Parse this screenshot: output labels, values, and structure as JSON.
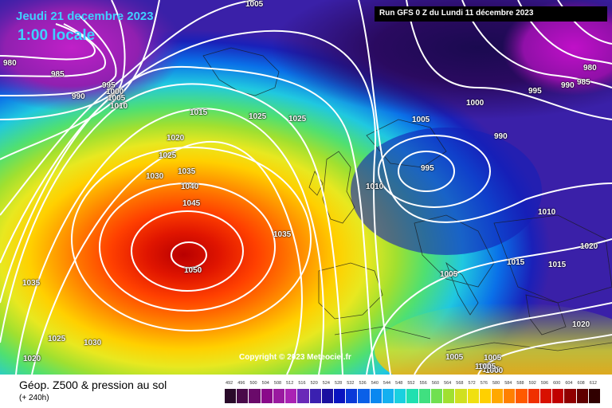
{
  "map": {
    "title_date": "Jeudi 21 decembre 2023",
    "title_time": "1:00 locale",
    "run_info": "Run GFS 0 Z du Lundi 11 décembre 2023",
    "copyright": "Copyright © 2023 Meteociel.fr",
    "isobar_labels": [
      {
        "value": "1005",
        "pos": "top-center"
      },
      {
        "value": "980",
        "pos": "left"
      },
      {
        "value": "985",
        "pos": "left"
      },
      {
        "value": "990",
        "pos": "left"
      },
      {
        "value": "995",
        "pos": "left"
      },
      {
        "value": "1000",
        "pos": "left"
      },
      {
        "value": "1005",
        "pos": "left"
      },
      {
        "value": "1010",
        "pos": "left"
      },
      {
        "value": "1015",
        "pos": "center-north"
      },
      {
        "value": "1025",
        "pos": "center-north"
      },
      {
        "value": "1025",
        "pos": "center-north"
      },
      {
        "value": "1020",
        "pos": "center-west"
      },
      {
        "value": "1025",
        "pos": "center-west"
      },
      {
        "value": "1030",
        "pos": "center-west"
      },
      {
        "value": "1035",
        "pos": "center-west"
      },
      {
        "value": "1040",
        "pos": "center-west"
      },
      {
        "value": "1045",
        "pos": "center-west"
      },
      {
        "value": "1050",
        "pos": "center-west"
      },
      {
        "value": "1035",
        "pos": "center"
      },
      {
        "value": "1035",
        "pos": "left"
      },
      {
        "value": "1025",
        "pos": "bottom-left"
      },
      {
        "value": "1030",
        "pos": "bottom-left"
      },
      {
        "value": "1020",
        "pos": "bottom-left"
      },
      {
        "value": "1010",
        "pos": "center-east"
      },
      {
        "value": "1005",
        "pos": "north-east"
      },
      {
        "value": "995",
        "pos": "east"
      },
      {
        "value": "1000",
        "pos": "north-east"
      },
      {
        "value": "995",
        "pos": "north-east"
      },
      {
        "value": "990",
        "pos": "north-east"
      },
      {
        "value": "990",
        "pos": "east"
      },
      {
        "value": "985",
        "pos": "far-east"
      },
      {
        "value": "980",
        "pos": "far-east"
      },
      {
        "value": "1010",
        "pos": "far-east"
      },
      {
        "value": "1020",
        "pos": "far-east"
      },
      {
        "value": "1015",
        "pos": "far-east"
      },
      {
        "value": "1015",
        "pos": "far-east"
      },
      {
        "value": "1020",
        "pos": "far-east"
      },
      {
        "value": "1005",
        "pos": "south-center"
      },
      {
        "value": "1005",
        "pos": "south"
      },
      {
        "value": "1005",
        "pos": "south"
      },
      {
        "value": "1005",
        "pos": "south"
      },
      {
        "value": "1005",
        "pos": "south"
      },
      {
        "value": "1000",
        "pos": "south"
      },
      {
        "value": "1005",
        "pos": "south"
      }
    ],
    "pressure_center": {
      "value": "1050",
      "type": "high"
    }
  },
  "footer": {
    "product_title": "Géop. Z500 & pression au sol",
    "product_sub": "(+ 240h)",
    "legend": {
      "labels": [
        "492",
        "496",
        "500",
        "504",
        "508",
        "512",
        "516",
        "520",
        "524",
        "528",
        "532",
        "536",
        "540",
        "544",
        "548",
        "552",
        "556",
        "560",
        "564",
        "568",
        "572",
        "576",
        "580",
        "584",
        "588",
        "592",
        "596",
        "600",
        "604",
        "608",
        "612"
      ],
      "colors": [
        "#2a0a2a",
        "#4a0a4a",
        "#6a0a6a",
        "#8a0a8a",
        "#9a1aa0",
        "#aa22b4",
        "#6a2ab8",
        "#3a20b0",
        "#1a10a0",
        "#0a14c0",
        "#0a3ad8",
        "#0a60e8",
        "#0a88f0",
        "#14b0f0",
        "#1ad0e0",
        "#20e0b0",
        "#40e080",
        "#70e050",
        "#a0e030",
        "#d0e020",
        "#f0e010",
        "#ffd000",
        "#ffa800",
        "#ff8000",
        "#ff5a00",
        "#f03000",
        "#d81000",
        "#c00000",
        "#900000",
        "#600000",
        "#300000"
      ]
    }
  }
}
